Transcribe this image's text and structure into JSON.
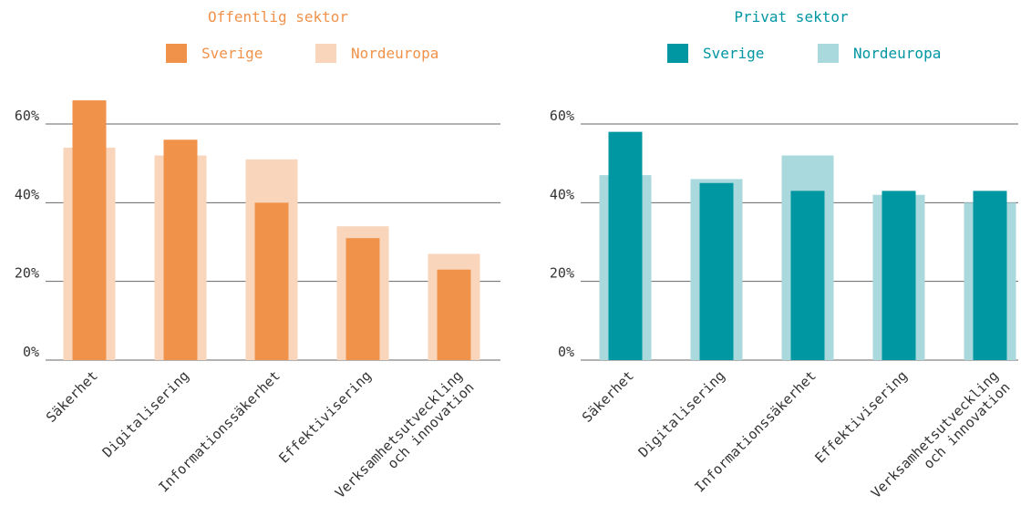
{
  "colors": {
    "public_main": "#f0924a",
    "public_light": "#f9d5bc",
    "private_main": "#0096a2",
    "private_light": "#a9d9dd",
    "axis_text": "#333333",
    "grid": "#666666"
  },
  "chart_data": [
    {
      "type": "bar",
      "title": "Offentlig sektor",
      "categories": [
        "Säkerhet",
        "Digitalisering",
        "Informationssäkerhet",
        "Effektivisering",
        "Verksamhetsutveckling\noch innovation"
      ],
      "series": [
        {
          "name": "Sverige",
          "values": [
            66,
            56,
            40,
            31,
            23
          ]
        },
        {
          "name": "Nordeuropa",
          "values": [
            54,
            52,
            51,
            34,
            27
          ]
        }
      ],
      "ylim": [
        0,
        60
      ],
      "yticks": [
        "0%",
        "20%",
        "40%",
        "60%"
      ],
      "grid": true,
      "legend": "top"
    },
    {
      "type": "bar",
      "title": "Privat sektor",
      "categories": [
        "Säkerhet",
        "Digitalisering",
        "Informationssäkerhet",
        "Effektivisering",
        "Verksamhetsutveckling\noch innovation"
      ],
      "series": [
        {
          "name": "Sverige",
          "values": [
            58,
            45,
            43,
            43,
            43
          ]
        },
        {
          "name": "Nordeuropa",
          "values": [
            47,
            46,
            52,
            42,
            40
          ]
        }
      ],
      "ylim": [
        0,
        60
      ],
      "yticks": [
        "0%",
        "20%",
        "40%",
        "60%"
      ],
      "grid": true,
      "legend": "top"
    }
  ]
}
